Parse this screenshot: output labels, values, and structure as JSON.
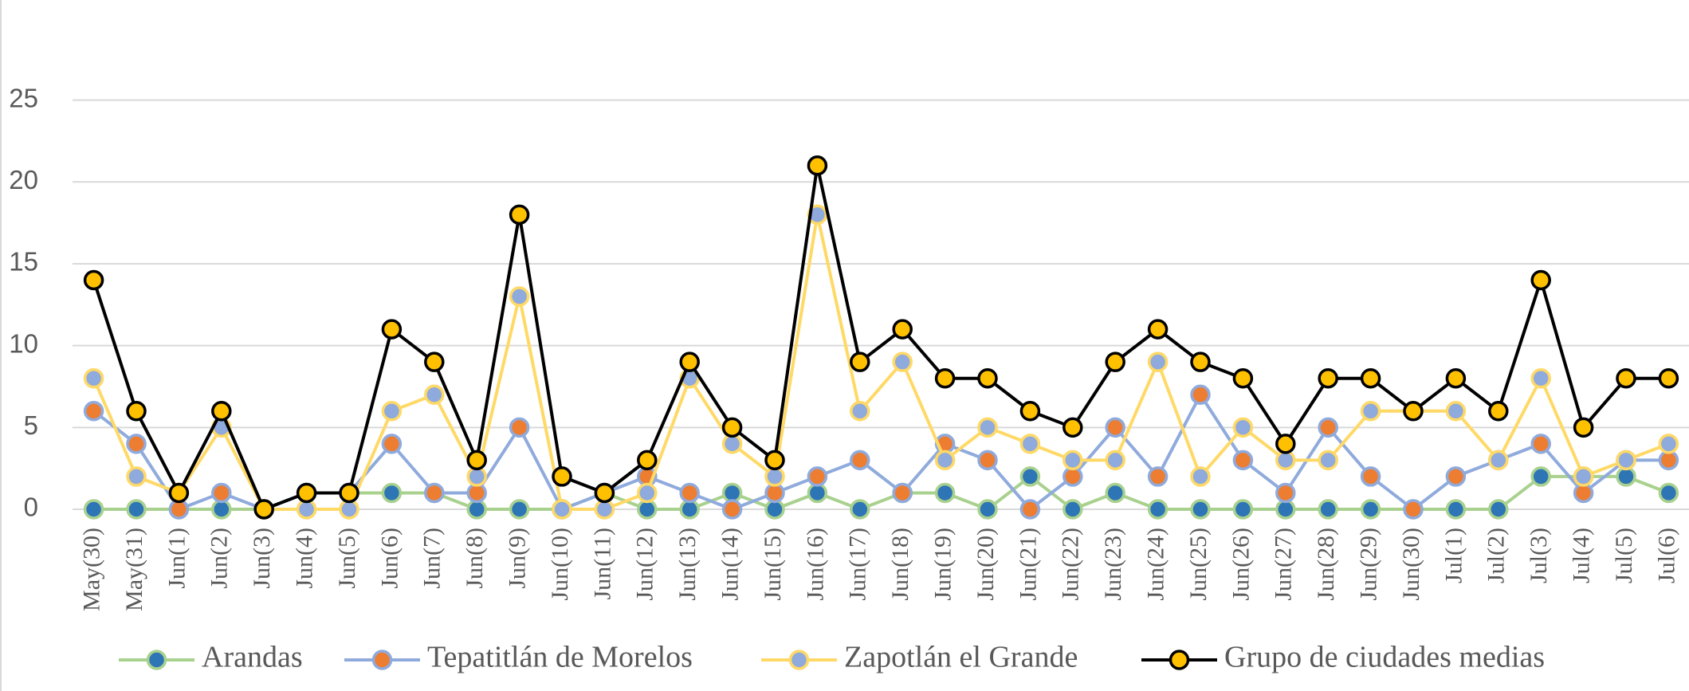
{
  "chart_data": {
    "type": "line",
    "categories": [
      "May(30)",
      "May(31)",
      "Jun(1)",
      "Jun(2)",
      "Jun(3)",
      "Jun(4)",
      "Jun(5)",
      "Jun(6)",
      "Jun(7)",
      "Jun(8)",
      "Jun(9)",
      "Jun(10)",
      "Jun(11)",
      "Jun(12)",
      "Jun(13)",
      "Jun(14)",
      "Jun(15)",
      "Jun(16)",
      "Jun(17)",
      "Jun(18)",
      "Jun(19)",
      "Jun(20)",
      "Jun(21)",
      "Jun(22)",
      "Jun(23)",
      "Jun(24)",
      "Jun(25)",
      "Jun(26)",
      "Jun(27)",
      "Jun(28)",
      "Jun(29)",
      "Jun(30)",
      "Jul(1)",
      "Jul(2)",
      "Jul(3)",
      "Jul(4)",
      "Jul(5)",
      "Jul(6)"
    ],
    "series": [
      {
        "name": "Arandas",
        "color": "#a9d18e",
        "marker_color": "#2e75b6",
        "values": [
          0,
          0,
          0,
          0,
          0,
          1,
          1,
          1,
          1,
          0,
          0,
          0,
          1,
          0,
          0,
          1,
          0,
          1,
          0,
          1,
          1,
          0,
          2,
          0,
          1,
          0,
          0,
          0,
          0,
          0,
          0,
          0,
          0,
          0,
          2,
          2,
          2,
          1
        ]
      },
      {
        "name": "Tepatitlán de Morelos",
        "color": "#8faadc",
        "marker_color": "#ed7d31",
        "values": [
          6,
          4,
          0,
          1,
          0,
          1,
          1,
          4,
          1,
          1,
          5,
          0,
          1,
          2,
          1,
          0,
          1,
          2,
          3,
          1,
          4,
          3,
          0,
          2,
          5,
          2,
          7,
          3,
          1,
          5,
          2,
          0,
          2,
          3,
          4,
          1,
          3,
          3
        ]
      },
      {
        "name": "Zapotlán el Grande",
        "color": "#ffd966",
        "marker_color": "#8faadc",
        "values": [
          8,
          2,
          1,
          5,
          0,
          0,
          0,
          6,
          7,
          2,
          13,
          0,
          0,
          1,
          8,
          4,
          2,
          18,
          6,
          9,
          3,
          5,
          4,
          3,
          3,
          9,
          2,
          5,
          3,
          3,
          6,
          6,
          6,
          3,
          8,
          2,
          3,
          4
        ]
      },
      {
        "name": "Grupo de ciudades medias",
        "color": "#000000",
        "marker_color": "#ffc000",
        "values": [
          14,
          6,
          1,
          6,
          0,
          1,
          1,
          11,
          9,
          3,
          18,
          2,
          1,
          3,
          9,
          5,
          3,
          21,
          9,
          11,
          8,
          8,
          6,
          5,
          9,
          11,
          9,
          8,
          4,
          8,
          8,
          6,
          8,
          6,
          14,
          5,
          8,
          8
        ]
      }
    ],
    "ylim": [
      0,
      25
    ],
    "yticks": [
      0,
      5,
      10,
      15,
      20,
      25
    ],
    "grid": true,
    "legend": "bottom"
  }
}
